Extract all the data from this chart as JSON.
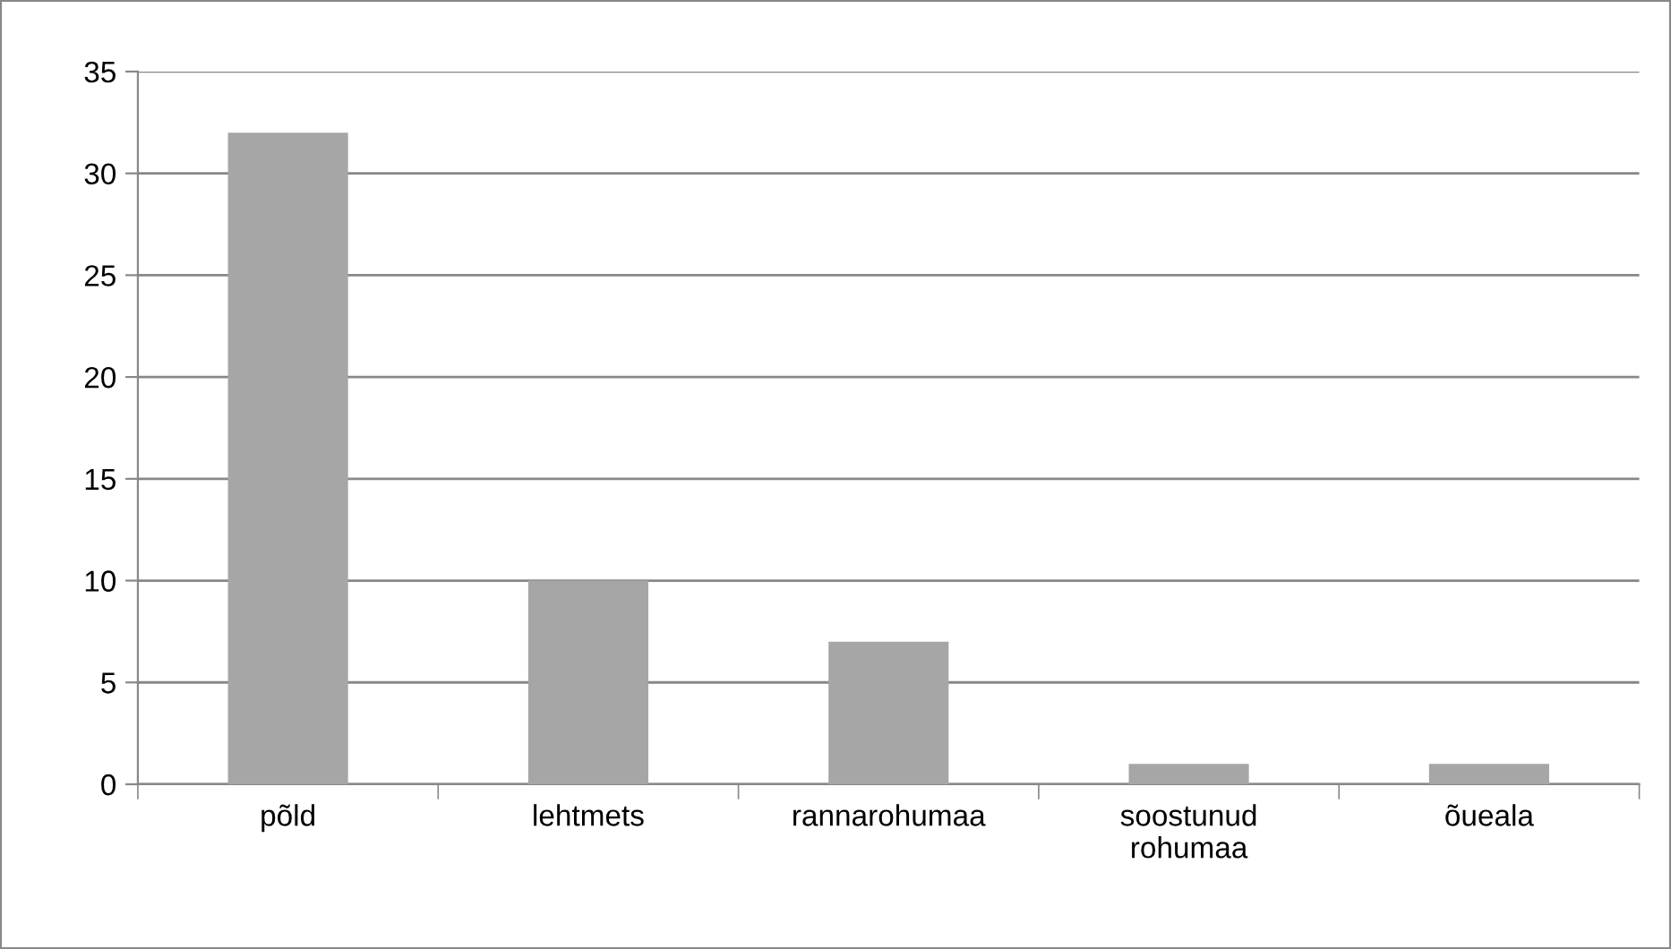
{
  "chart_data": {
    "type": "bar",
    "categories": [
      "põld",
      "lehtmets",
      "rannarohumaa",
      "soostunud\nrohumaa",
      "õueala"
    ],
    "values": [
      32,
      10,
      7,
      1,
      1
    ],
    "color": "#a6a6a6",
    "ylim": [
      0,
      35
    ],
    "yticks": [
      0,
      5,
      10,
      15,
      20,
      25,
      30,
      35
    ],
    "grid": "y",
    "legend": false
  }
}
